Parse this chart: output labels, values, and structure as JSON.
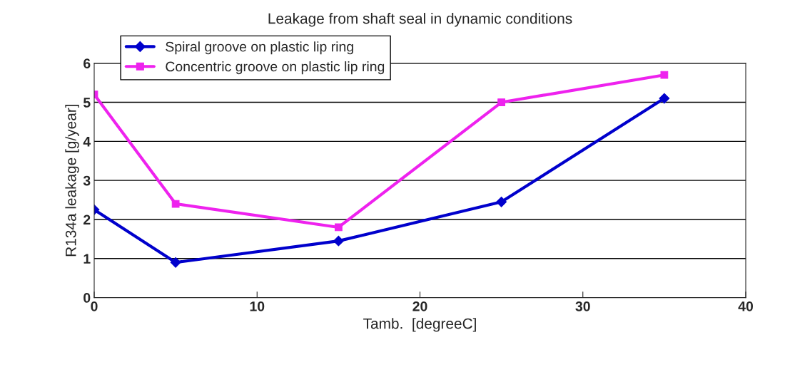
{
  "chart_data": {
    "type": "line",
    "title": "Leakage from shaft seal in dynamic conditions",
    "xlabel": "Tamb.  [degreeC]",
    "ylabel": "R134a leakage [g/year]",
    "x": [
      0,
      5,
      15,
      25,
      35
    ],
    "series": [
      {
        "name": "Spiral groove on plastic lip ring",
        "color": "#0000cc",
        "marker": "diamond",
        "values": [
          2.25,
          0.9,
          1.45,
          2.45,
          5.1
        ]
      },
      {
        "name": "Concentric groove on plastic lip ring",
        "color": "#ee22ee",
        "marker": "square",
        "values": [
          5.2,
          2.4,
          1.8,
          5.0,
          5.7
        ]
      }
    ],
    "xlim": [
      0,
      40
    ],
    "xticks": [
      0,
      10,
      20,
      30,
      40
    ],
    "ylim": [
      0,
      6
    ],
    "yticks": [
      0,
      1,
      2,
      3,
      4,
      5,
      6
    ],
    "grid": "y",
    "legend": "top left"
  }
}
